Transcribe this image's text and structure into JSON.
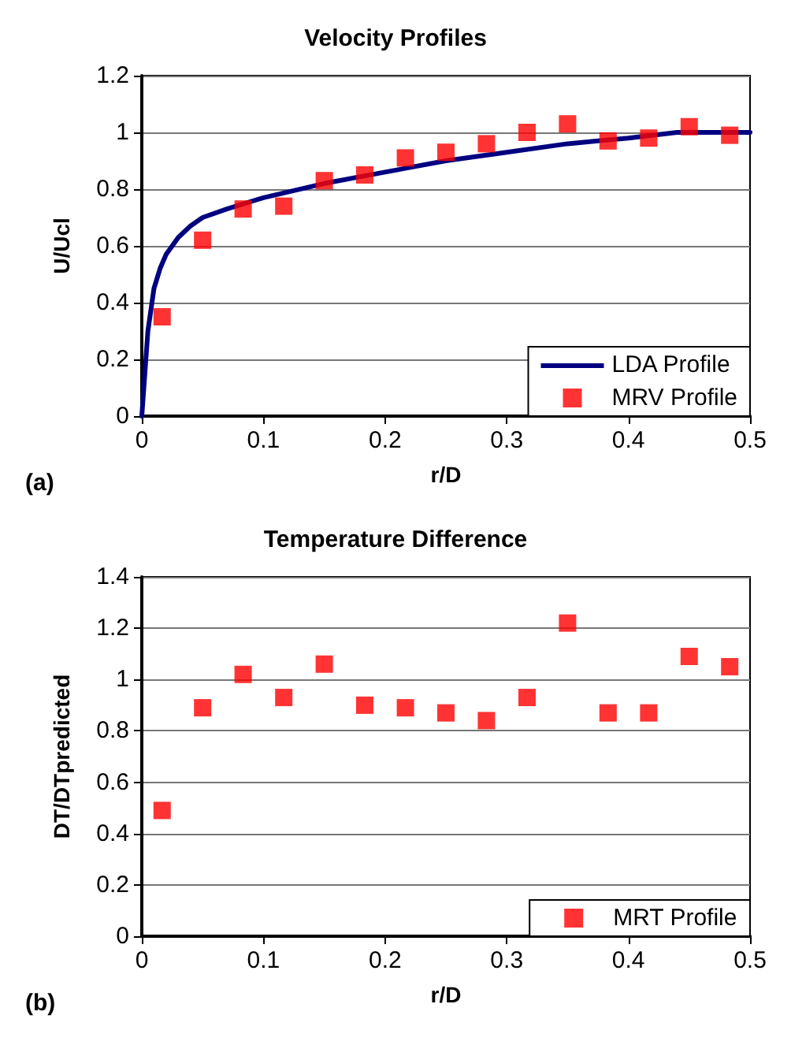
{
  "chart_data": [
    {
      "type": "scatter",
      "title": "Velocity Profiles",
      "xlabel": "r/D",
      "ylabel": "U/Ucl",
      "annotations": [
        "(a)"
      ],
      "xlim": [
        0,
        0.5
      ],
      "xticks": [
        0,
        0.1,
        0.2,
        0.3,
        0.4,
        0.5
      ],
      "ylim": [
        0,
        1.2
      ],
      "yticks": [
        0,
        0.2,
        0.4,
        0.6,
        0.8,
        1,
        1.2
      ],
      "grid": "y",
      "legend": "bottom right",
      "series": [
        {
          "name": "LDA Profile",
          "type": "line",
          "color": "#000080",
          "marker": "none",
          "line_style": "solid",
          "x": [
            0,
            0.005,
            0.01,
            0.015,
            0.02,
            0.03,
            0.04,
            0.05,
            0.07,
            0.1,
            0.15,
            0.2,
            0.25,
            0.3,
            0.35,
            0.4,
            0.44,
            0.5
          ],
          "values": [
            0,
            0.3,
            0.45,
            0.52,
            0.57,
            0.63,
            0.67,
            0.7,
            0.73,
            0.77,
            0.82,
            0.86,
            0.9,
            0.93,
            0.96,
            0.98,
            1.0,
            1.0
          ]
        },
        {
          "name": "MRV Profile",
          "type": "scatter",
          "color": "#ff0000",
          "marker": "square",
          "x": [
            0.0167,
            0.05,
            0.0833,
            0.1167,
            0.15,
            0.1833,
            0.2167,
            0.25,
            0.2833,
            0.3167,
            0.35,
            0.3833,
            0.4167,
            0.45,
            0.4833
          ],
          "values": [
            0.35,
            0.62,
            0.73,
            0.74,
            0.83,
            0.85,
            0.91,
            0.93,
            0.96,
            1.0,
            1.03,
            0.97,
            0.98,
            1.02,
            0.99
          ]
        }
      ]
    },
    {
      "type": "scatter",
      "title": "Temperature Difference",
      "xlabel": "r/D",
      "ylabel": "DT/DTpredicted",
      "annotations": [
        "(b)"
      ],
      "xlim": [
        0,
        0.5
      ],
      "xticks": [
        0,
        0.1,
        0.2,
        0.3,
        0.4,
        0.5
      ],
      "ylim": [
        0,
        1.4
      ],
      "yticks": [
        0,
        0.2,
        0.4,
        0.6,
        0.8,
        1,
        1.2,
        1.4
      ],
      "grid": "y",
      "legend": "bottom right",
      "series": [
        {
          "name": "MRT Profile",
          "type": "scatter",
          "color": "#ff0000",
          "marker": "square",
          "x": [
            0.0167,
            0.05,
            0.0833,
            0.1167,
            0.15,
            0.1833,
            0.2167,
            0.25,
            0.2833,
            0.3167,
            0.35,
            0.3833,
            0.4167,
            0.45,
            0.4833
          ],
          "values": [
            0.49,
            0.89,
            1.02,
            0.93,
            1.06,
            0.9,
            0.89,
            0.87,
            0.84,
            0.93,
            1.22,
            0.87,
            0.87,
            1.09,
            1.05
          ]
        }
      ]
    }
  ]
}
